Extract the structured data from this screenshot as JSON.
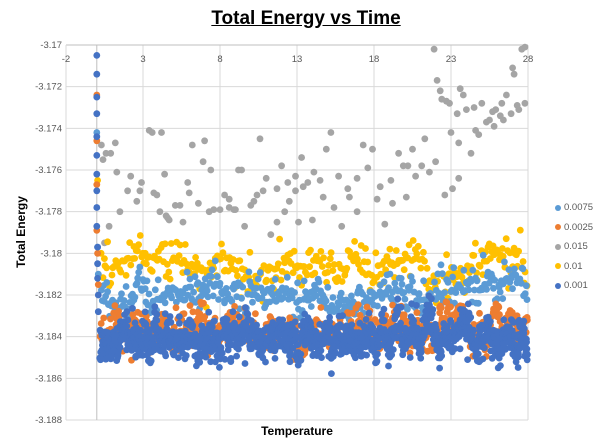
{
  "chart_data": {
    "type": "scatter",
    "title": "Total Energy vs Time",
    "xlabel": "Temperature",
    "ylabel": "Total Energy",
    "xlim": [
      -2,
      28
    ],
    "ylim": [
      -3.188,
      -3.17
    ],
    "x_ticks": [
      -2,
      3,
      8,
      13,
      18,
      23,
      28
    ],
    "y_ticks": [
      -3.17,
      -3.172,
      -3.174,
      -3.176,
      -3.178,
      -3.18,
      -3.182,
      -3.184,
      -3.186,
      -3.188
    ],
    "y_tick_labels": [
      "-3.17",
      "-3.172",
      "-3.174",
      "-3.176",
      "-3.178",
      "-3.18",
      "-3.182",
      "-3.184",
      "-3.186",
      "-3.188"
    ],
    "x_axis_position": "top (crosses at y = -3.17)",
    "grid": true,
    "legend_position": "right",
    "legend": [
      "0.0075",
      "0.0025",
      "0.015",
      "0.01",
      "0.001"
    ],
    "series": [
      {
        "name": "0.001",
        "color": "#4472C4",
        "initial_points": [
          [
            0,
            -3.1705
          ],
          [
            0,
            -3.1714
          ],
          [
            0,
            -3.1725
          ],
          [
            0,
            -3.1733
          ],
          [
            0,
            -3.1744
          ],
          [
            0,
            -3.1753
          ],
          [
            0,
            -3.1762
          ],
          [
            0,
            -3.177
          ],
          [
            0,
            -3.1778
          ],
          [
            0,
            -3.1787
          ],
          [
            0.05,
            -3.1797
          ],
          [
            0.05,
            -3.1805
          ],
          [
            0.05,
            -3.1812
          ],
          [
            0.1,
            -3.182
          ],
          [
            0.1,
            -3.1828
          ]
        ],
        "bulk": {
          "x_range": [
            0.2,
            28
          ],
          "mean": -3.1841,
          "spread": 0.0006,
          "count": 1400,
          "description": "dense band around -3.184"
        }
      },
      {
        "name": "0.0025",
        "color": "#ED7D31",
        "initial_points": [
          [
            0,
            -3.1724
          ],
          [
            0,
            -3.1746
          ],
          [
            0,
            -3.1767
          ],
          [
            0,
            -3.1789
          ],
          [
            0.05,
            -3.18
          ],
          [
            0.1,
            -3.1815
          ]
        ],
        "bulk": {
          "x_range": [
            0.2,
            28
          ],
          "mean": -3.1838,
          "spread": 0.0006,
          "count": 700,
          "description": "band around -3.1838, mostly behind 0.001"
        }
      },
      {
        "name": "0.0075",
        "color": "#5B9BD5",
        "initial_points": [
          [
            0,
            -3.1742
          ],
          [
            0.05,
            -3.1797
          ],
          [
            0.1,
            -3.181
          ]
        ],
        "bulk": {
          "x_range": [
            0.3,
            28
          ],
          "mean": -3.182,
          "spread": 0.0006,
          "count": 420,
          "description": "band around -3.182"
        }
      },
      {
        "name": "0.01",
        "color": "#FFC000",
        "initial_points": [
          [
            0.05,
            -3.1765
          ]
        ],
        "bulk": {
          "x_range": [
            0.3,
            28
          ],
          "mean": -3.1805,
          "spread": 0.0007,
          "count": 330,
          "description": "band around -3.1805"
        }
      },
      {
        "name": "0.015",
        "color": "#A5A5A5",
        "points": [
          [
            0.3,
            -3.1748
          ],
          [
            0.6,
            -3.1752
          ],
          [
            0.9,
            -3.1752
          ],
          [
            1.2,
            -3.1747
          ],
          [
            0.4,
            -3.1755
          ],
          [
            1.3,
            -3.1761
          ],
          [
            2.2,
            -3.1763
          ],
          [
            2.0,
            -3.177
          ],
          [
            1.5,
            -3.178
          ],
          [
            0.8,
            -3.1787
          ],
          [
            0.5,
            -3.1795
          ],
          [
            2.6,
            -3.1775
          ],
          [
            2.9,
            -3.1766
          ],
          [
            3.4,
            -3.1741
          ],
          [
            3.6,
            -3.1742
          ],
          [
            4.2,
            -3.1742
          ],
          [
            4.4,
            -3.1762
          ],
          [
            3.7,
            -3.1771
          ],
          [
            3.9,
            -3.1772
          ],
          [
            4.1,
            -3.178
          ],
          [
            4.5,
            -3.1782
          ],
          [
            4.6,
            -3.1783
          ],
          [
            4.7,
            -3.1784
          ],
          [
            5.1,
            -3.1777
          ],
          [
            5.4,
            -3.1777
          ],
          [
            5.9,
            -3.1766
          ],
          [
            6.0,
            -3.1771
          ],
          [
            6.6,
            -3.1776
          ],
          [
            7.0,
            -3.1746
          ],
          [
            7.3,
            -3.178
          ],
          [
            7.4,
            -3.176
          ],
          [
            7.6,
            -3.1779
          ],
          [
            8.0,
            -3.1779
          ],
          [
            8.3,
            -3.1772
          ],
          [
            8.6,
            -3.1774
          ],
          [
            8.9,
            -3.1779
          ],
          [
            9.2,
            -3.176
          ],
          [
            9.4,
            -3.176
          ],
          [
            9.6,
            -3.1787
          ],
          [
            10.2,
            -3.1775
          ],
          [
            10.4,
            -3.1772
          ],
          [
            10.6,
            -3.1745
          ],
          [
            11.0,
            -3.1764
          ],
          [
            11.3,
            -3.1791
          ],
          [
            11.7,
            -3.1785
          ],
          [
            12.0,
            -3.1758
          ],
          [
            12.4,
            -3.1766
          ],
          [
            12.9,
            -3.1763
          ],
          [
            13.3,
            -3.1754
          ],
          [
            12.2,
            -3.178
          ],
          [
            12.5,
            -3.1775
          ],
          [
            12.9,
            -3.177
          ],
          [
            13.4,
            -3.1768
          ],
          [
            13.7,
            -3.1766
          ],
          [
            14.1,
            -3.1761
          ],
          [
            14.5,
            -3.1765
          ],
          [
            14.9,
            -3.175
          ],
          [
            15.2,
            -3.1742
          ],
          [
            15.7,
            -3.1763
          ],
          [
            16.3,
            -3.1769
          ],
          [
            16.9,
            -3.1764
          ],
          [
            17.3,
            -3.1748
          ],
          [
            17.6,
            -3.1759
          ],
          [
            18.2,
            -3.1774
          ],
          [
            18.7,
            -3.1786
          ],
          [
            19.1,
            -3.1765
          ],
          [
            19.6,
            -3.1752
          ],
          [
            20.2,
            -3.1758
          ],
          [
            20.7,
            -3.1763
          ],
          [
            21.1,
            -3.1758
          ],
          [
            21.6,
            -3.1761
          ],
          [
            22.0,
            -3.1756
          ],
          [
            22.6,
            -3.1772
          ],
          [
            23.1,
            -3.1769
          ],
          [
            23.5,
            -3.1764
          ],
          [
            24.3,
            -3.1752
          ],
          [
            24.8,
            -3.1743
          ],
          [
            25.3,
            -3.1737
          ],
          [
            25.9,
            -3.1731
          ],
          [
            26.4,
            -3.1736
          ],
          [
            26.9,
            -3.1733
          ],
          [
            27.4,
            -3.1731
          ],
          [
            27.8,
            -3.1728
          ],
          [
            23.5,
            -3.1747
          ],
          [
            22.1,
            -3.1717
          ],
          [
            22.3,
            -3.1722
          ],
          [
            22.7,
            -3.1727
          ],
          [
            23.0,
            -3.1742
          ],
          [
            23.4,
            -3.1733
          ],
          [
            23.8,
            -3.1724
          ],
          [
            22.9,
            -3.1728
          ],
          [
            21.9,
            -3.1702
          ],
          [
            22.4,
            -3.1726
          ],
          [
            24.0,
            -3.1731
          ],
          [
            24.5,
            -3.173
          ],
          [
            25.0,
            -3.1728
          ],
          [
            25.5,
            -3.1736
          ],
          [
            25.8,
            -3.1739
          ],
          [
            26.2,
            -3.1734
          ],
          [
            26.6,
            -3.1724
          ],
          [
            27.0,
            -3.1711
          ],
          [
            27.3,
            -3.1729
          ],
          [
            27.6,
            -3.1702
          ],
          [
            27.8,
            -3.1701
          ],
          [
            27.1,
            -3.1714
          ],
          [
            26.3,
            -3.1728
          ],
          [
            25.7,
            -3.1732
          ],
          [
            24.6,
            -3.1741
          ],
          [
            23.6,
            -3.1721
          ],
          [
            20.1,
            -3.1773
          ],
          [
            20.5,
            -3.175
          ],
          [
            21.3,
            -3.1745
          ],
          [
            19.9,
            -3.1758
          ],
          [
            19.2,
            -3.1776
          ],
          [
            18.4,
            -3.1768
          ],
          [
            17.9,
            -3.175
          ],
          [
            16.9,
            -3.178
          ],
          [
            16.4,
            -3.1773
          ],
          [
            15.9,
            -3.1787
          ],
          [
            15.4,
            -3.1778
          ],
          [
            14.7,
            -3.1773
          ],
          [
            14.0,
            -3.1784
          ],
          [
            13.1,
            -3.1785
          ],
          [
            11.7,
            -3.1769
          ],
          [
            10.8,
            -3.177
          ],
          [
            10.0,
            -3.1777
          ],
          [
            9.0,
            -3.1779
          ],
          [
            8.6,
            -3.1778
          ],
          [
            6.9,
            -3.1756
          ],
          [
            6.2,
            -3.1748
          ],
          [
            5.6,
            -3.1785
          ],
          [
            2.8,
            -3.177
          ]
        ]
      }
    ]
  }
}
